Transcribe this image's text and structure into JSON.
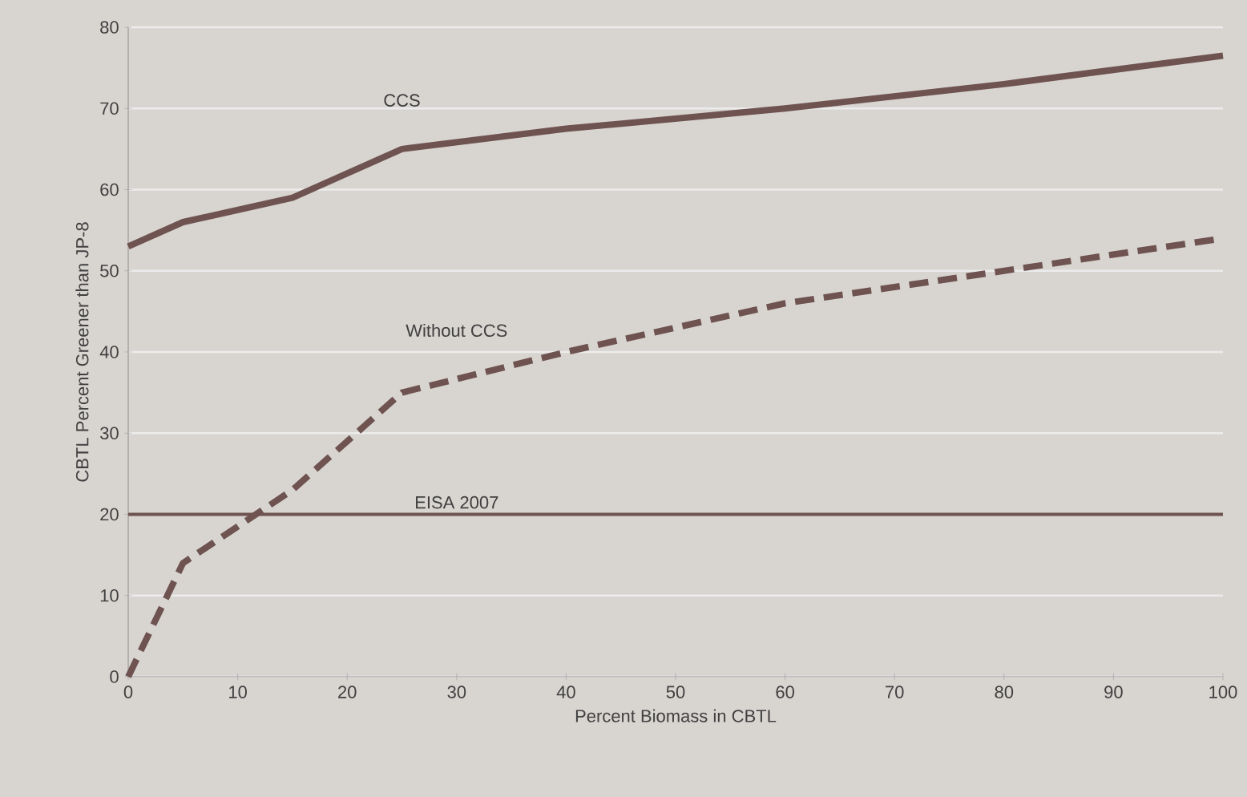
{
  "chart_data": {
    "type": "line",
    "xlabel": "Percent Biomass in CBTL",
    "ylabel": "CBTL Percent Greener than JP-8",
    "xlim": [
      0,
      100
    ],
    "ylim": [
      0,
      80
    ],
    "xticks": [
      0,
      10,
      20,
      30,
      40,
      50,
      60,
      70,
      80,
      90,
      100
    ],
    "yticks": [
      0,
      10,
      20,
      30,
      40,
      50,
      60,
      70,
      80
    ],
    "grid": "y",
    "marker": "none",
    "series": [
      {
        "name": "CCS",
        "color": "#6e5350",
        "line_style": "solid",
        "x": [
          0,
          5,
          15,
          25,
          40,
          60,
          80,
          100
        ],
        "values": [
          53,
          56,
          59,
          65,
          67.5,
          70,
          73,
          76.5
        ]
      },
      {
        "name": "Without CCS",
        "color": "#6e5350",
        "line_style": "dashed",
        "x": [
          0,
          5,
          15,
          25,
          40,
          60,
          80,
          100
        ],
        "values": [
          0,
          14,
          23,
          35,
          40,
          46,
          50,
          54
        ]
      }
    ],
    "ref_lines": [
      {
        "axis": "y",
        "value": 20,
        "label": "EISA 2007",
        "color": "#6e5350"
      }
    ]
  }
}
